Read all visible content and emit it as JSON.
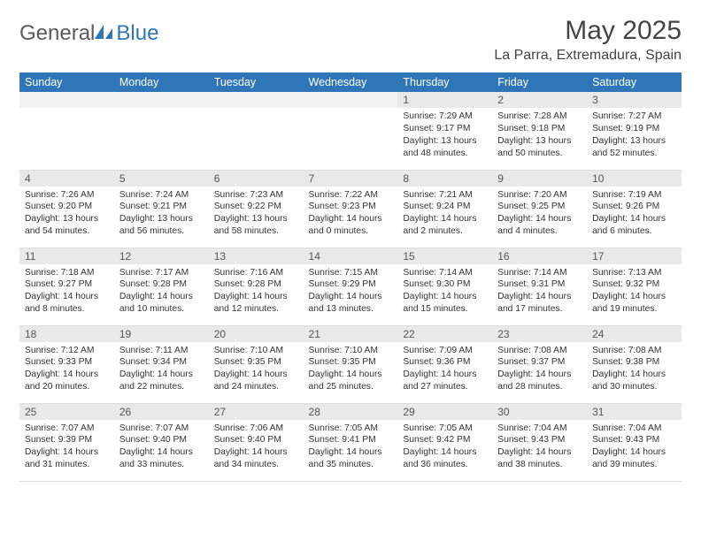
{
  "logo": {
    "text1": "General",
    "text2": "Blue"
  },
  "title": "May 2025",
  "location": "La Parra, Extremadura, Spain",
  "daysOfWeek": [
    "Sunday",
    "Monday",
    "Tuesday",
    "Wednesday",
    "Thursday",
    "Friday",
    "Saturday"
  ],
  "colors": {
    "headerBg": "#2f76b8",
    "headerText": "#ffffff",
    "dayNumBg": "#e9e9e9",
    "dayNumEmptyBg": "#f2f2f2",
    "cellBorder": "#dddddd",
    "titleColor": "#444444",
    "bodyText": "#333333",
    "logoGray": "#5a5a5a",
    "logoBlue": "#2f76b8"
  },
  "weeks": [
    [
      null,
      null,
      null,
      null,
      {
        "n": "1",
        "sunrise": "7:29 AM",
        "sunset": "9:17 PM",
        "daylight": "13 hours and 48 minutes."
      },
      {
        "n": "2",
        "sunrise": "7:28 AM",
        "sunset": "9:18 PM",
        "daylight": "13 hours and 50 minutes."
      },
      {
        "n": "3",
        "sunrise": "7:27 AM",
        "sunset": "9:19 PM",
        "daylight": "13 hours and 52 minutes."
      }
    ],
    [
      {
        "n": "4",
        "sunrise": "7:26 AM",
        "sunset": "9:20 PM",
        "daylight": "13 hours and 54 minutes."
      },
      {
        "n": "5",
        "sunrise": "7:24 AM",
        "sunset": "9:21 PM",
        "daylight": "13 hours and 56 minutes."
      },
      {
        "n": "6",
        "sunrise": "7:23 AM",
        "sunset": "9:22 PM",
        "daylight": "13 hours and 58 minutes."
      },
      {
        "n": "7",
        "sunrise": "7:22 AM",
        "sunset": "9:23 PM",
        "daylight": "14 hours and 0 minutes."
      },
      {
        "n": "8",
        "sunrise": "7:21 AM",
        "sunset": "9:24 PM",
        "daylight": "14 hours and 2 minutes."
      },
      {
        "n": "9",
        "sunrise": "7:20 AM",
        "sunset": "9:25 PM",
        "daylight": "14 hours and 4 minutes."
      },
      {
        "n": "10",
        "sunrise": "7:19 AM",
        "sunset": "9:26 PM",
        "daylight": "14 hours and 6 minutes."
      }
    ],
    [
      {
        "n": "11",
        "sunrise": "7:18 AM",
        "sunset": "9:27 PM",
        "daylight": "14 hours and 8 minutes."
      },
      {
        "n": "12",
        "sunrise": "7:17 AM",
        "sunset": "9:28 PM",
        "daylight": "14 hours and 10 minutes."
      },
      {
        "n": "13",
        "sunrise": "7:16 AM",
        "sunset": "9:28 PM",
        "daylight": "14 hours and 12 minutes."
      },
      {
        "n": "14",
        "sunrise": "7:15 AM",
        "sunset": "9:29 PM",
        "daylight": "14 hours and 13 minutes."
      },
      {
        "n": "15",
        "sunrise": "7:14 AM",
        "sunset": "9:30 PM",
        "daylight": "14 hours and 15 minutes."
      },
      {
        "n": "16",
        "sunrise": "7:14 AM",
        "sunset": "9:31 PM",
        "daylight": "14 hours and 17 minutes."
      },
      {
        "n": "17",
        "sunrise": "7:13 AM",
        "sunset": "9:32 PM",
        "daylight": "14 hours and 19 minutes."
      }
    ],
    [
      {
        "n": "18",
        "sunrise": "7:12 AM",
        "sunset": "9:33 PM",
        "daylight": "14 hours and 20 minutes."
      },
      {
        "n": "19",
        "sunrise": "7:11 AM",
        "sunset": "9:34 PM",
        "daylight": "14 hours and 22 minutes."
      },
      {
        "n": "20",
        "sunrise": "7:10 AM",
        "sunset": "9:35 PM",
        "daylight": "14 hours and 24 minutes."
      },
      {
        "n": "21",
        "sunrise": "7:10 AM",
        "sunset": "9:35 PM",
        "daylight": "14 hours and 25 minutes."
      },
      {
        "n": "22",
        "sunrise": "7:09 AM",
        "sunset": "9:36 PM",
        "daylight": "14 hours and 27 minutes."
      },
      {
        "n": "23",
        "sunrise": "7:08 AM",
        "sunset": "9:37 PM",
        "daylight": "14 hours and 28 minutes."
      },
      {
        "n": "24",
        "sunrise": "7:08 AM",
        "sunset": "9:38 PM",
        "daylight": "14 hours and 30 minutes."
      }
    ],
    [
      {
        "n": "25",
        "sunrise": "7:07 AM",
        "sunset": "9:39 PM",
        "daylight": "14 hours and 31 minutes."
      },
      {
        "n": "26",
        "sunrise": "7:07 AM",
        "sunset": "9:40 PM",
        "daylight": "14 hours and 33 minutes."
      },
      {
        "n": "27",
        "sunrise": "7:06 AM",
        "sunset": "9:40 PM",
        "daylight": "14 hours and 34 minutes."
      },
      {
        "n": "28",
        "sunrise": "7:05 AM",
        "sunset": "9:41 PM",
        "daylight": "14 hours and 35 minutes."
      },
      {
        "n": "29",
        "sunrise": "7:05 AM",
        "sunset": "9:42 PM",
        "daylight": "14 hours and 36 minutes."
      },
      {
        "n": "30",
        "sunrise": "7:04 AM",
        "sunset": "9:43 PM",
        "daylight": "14 hours and 38 minutes."
      },
      {
        "n": "31",
        "sunrise": "7:04 AM",
        "sunset": "9:43 PM",
        "daylight": "14 hours and 39 minutes."
      }
    ]
  ],
  "labels": {
    "sunrise": "Sunrise:",
    "sunset": "Sunset:",
    "daylight": "Daylight:"
  }
}
